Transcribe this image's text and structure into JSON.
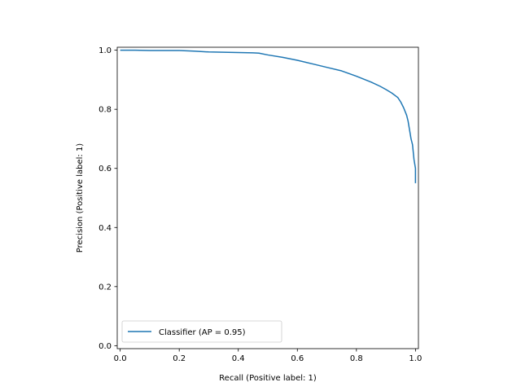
{
  "chart_data": {
    "type": "line",
    "title": "",
    "xlabel": "Recall (Positive label: 1)",
    "ylabel": "Precision (Positive label: 1)",
    "xlim": [
      -0.01,
      1.01
    ],
    "ylim": [
      -0.01,
      1.01
    ],
    "xticks": [
      0.0,
      0.2,
      0.4,
      0.6,
      0.8,
      1.0
    ],
    "yticks": [
      0.0,
      0.2,
      0.4,
      0.6,
      0.8,
      1.0
    ],
    "xtick_labels": [
      "0.0",
      "0.2",
      "0.4",
      "0.6",
      "0.8",
      "1.0"
    ],
    "ytick_labels": [
      "0.0",
      "0.2",
      "0.4",
      "0.6",
      "0.8",
      "1.0"
    ],
    "grid": false,
    "legend_position": "lower-left",
    "series": [
      {
        "name": "Classifier (AP = 0.95)",
        "color": "#1f77b4",
        "x": [
          0.0,
          0.005,
          0.05,
          0.1,
          0.15,
          0.2,
          0.25,
          0.3,
          0.35,
          0.4,
          0.45,
          0.47,
          0.5,
          0.55,
          0.6,
          0.65,
          0.7,
          0.75,
          0.8,
          0.85,
          0.88,
          0.9,
          0.92,
          0.94,
          0.95,
          0.96,
          0.97,
          0.975,
          0.98,
          0.985,
          0.99,
          0.995,
          1.0,
          1.0
        ],
        "y": [
          1.0,
          1.0,
          1.0,
          0.999,
          0.999,
          0.999,
          0.997,
          0.994,
          0.993,
          0.992,
          0.991,
          0.99,
          0.984,
          0.976,
          0.966,
          0.954,
          0.942,
          0.93,
          0.912,
          0.892,
          0.878,
          0.867,
          0.855,
          0.84,
          0.825,
          0.805,
          0.78,
          0.76,
          0.73,
          0.7,
          0.68,
          0.63,
          0.6,
          0.55
        ]
      }
    ]
  }
}
